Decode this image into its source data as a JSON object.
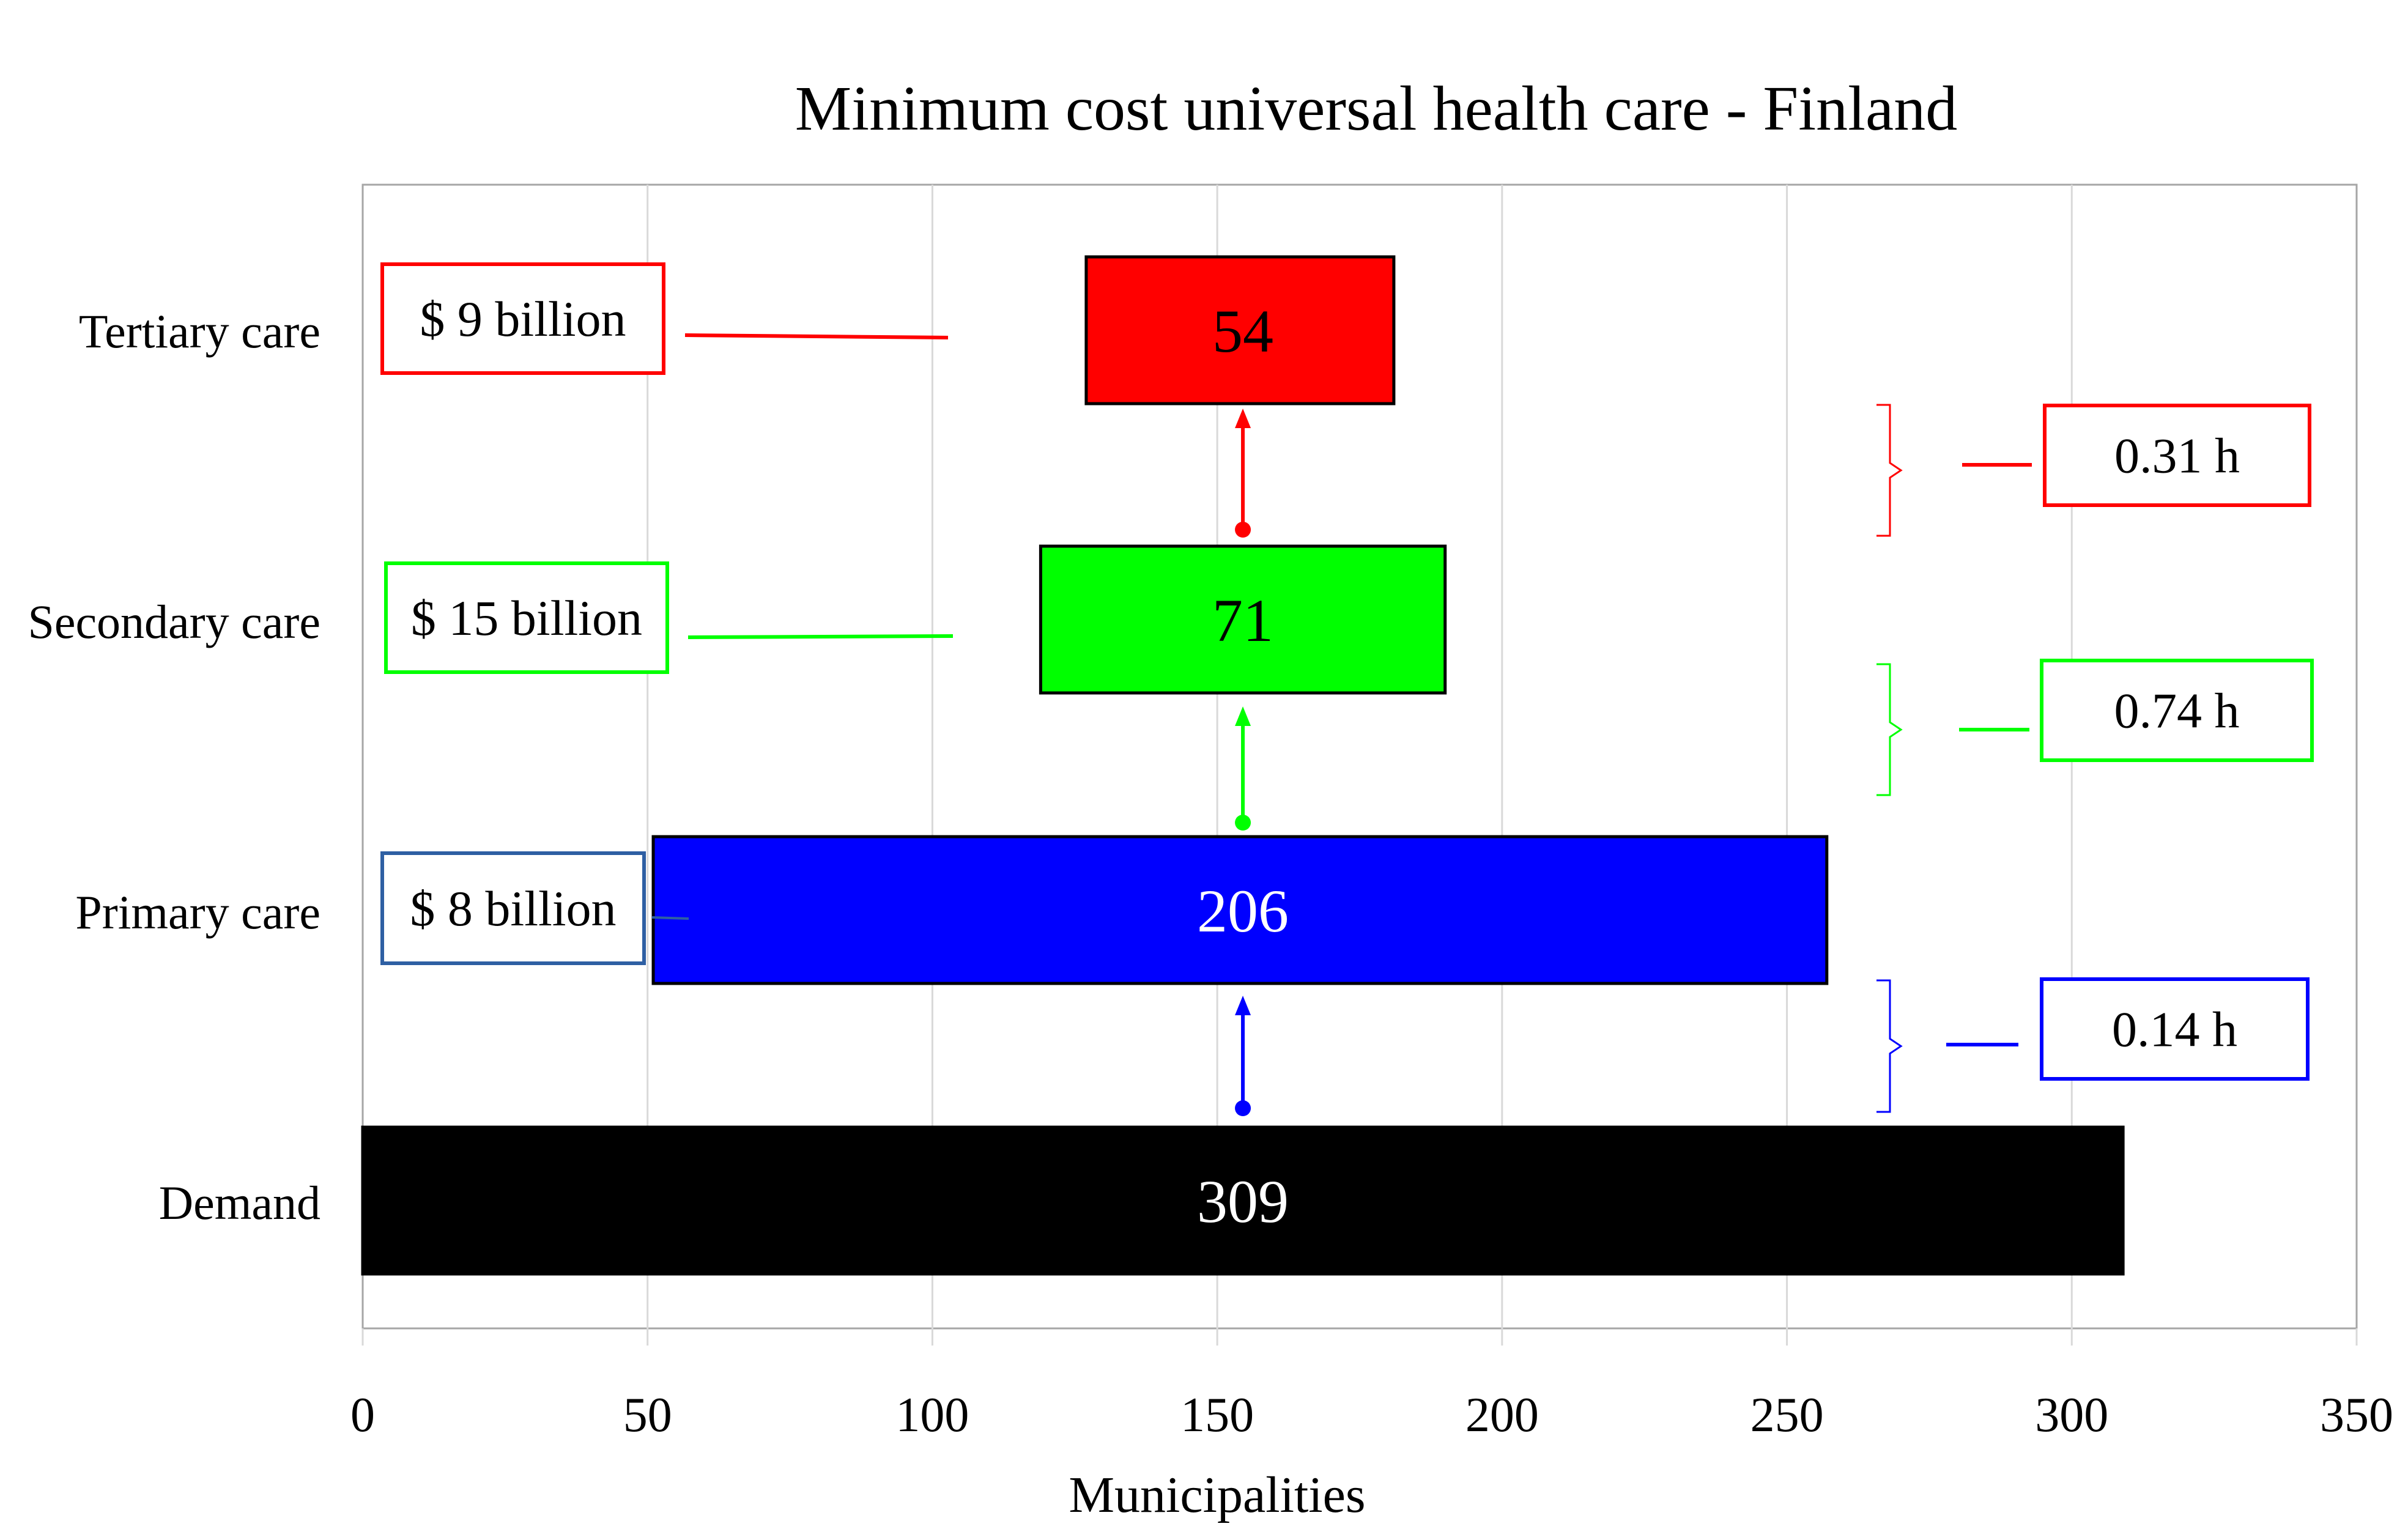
{
  "chart_data": {
    "type": "bar",
    "orientation": "horizontal",
    "title": "Minimum cost universal health care - Finland",
    "xlabel": "Municipalities",
    "ylabel": "",
    "xlim": [
      0,
      350
    ],
    "xticks": [
      "0",
      "50",
      "100",
      "150",
      "200",
      "250",
      "300",
      "350"
    ],
    "grid": true,
    "bars": [
      {
        "category": "Demand",
        "value": 309,
        "value_label": "309",
        "start": 0,
        "end": 309,
        "color": "#000000",
        "text_color": "#ffffff"
      },
      {
        "category": "Primary care",
        "value": 206,
        "value_label": "206",
        "start": 51,
        "end": 257,
        "color": "#0000ff",
        "text_color": "#ffffff"
      },
      {
        "category": "Secondary care",
        "value": 71,
        "value_label": "71",
        "start": 119,
        "end": 190,
        "color": "#00ff00",
        "text_color": "#000000"
      },
      {
        "category": "Tertiary care",
        "value": 54,
        "value_label": "54",
        "start": 127,
        "end": 181,
        "color": "#ff0000",
        "text_color": "#000000"
      }
    ],
    "cost_annotations": [
      {
        "category": "Tertiary care",
        "label": "$ 9 billion",
        "color": "#ff0000"
      },
      {
        "category": "Secondary care",
        "label": "$ 15 billion",
        "color": "#00ff00"
      },
      {
        "category": "Primary care",
        "label": "$ 8 billion",
        "color": "#2e5fa3"
      }
    ],
    "time_annotations": [
      {
        "between": [
          "Secondary care",
          "Tertiary care"
        ],
        "label": "0.31 h",
        "color": "#ff0000"
      },
      {
        "between": [
          "Primary care",
          "Secondary care"
        ],
        "label": "0.74 h",
        "color": "#00ff00"
      },
      {
        "between": [
          "Demand",
          "Primary care"
        ],
        "label": "0.14 h",
        "color": "#0000ff"
      }
    ]
  }
}
